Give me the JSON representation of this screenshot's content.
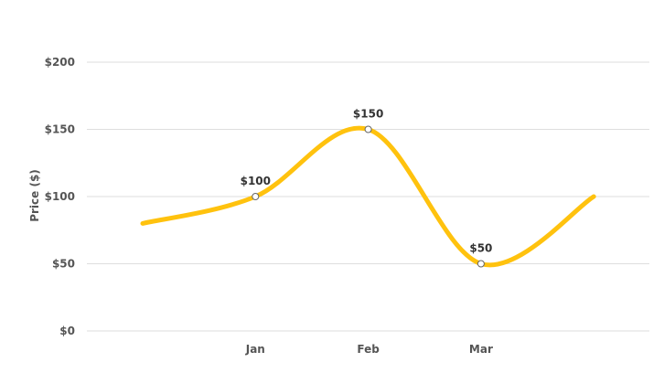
{
  "chart_data": {
    "type": "line",
    "title": "",
    "xlabel": "",
    "ylabel": "Price ($)",
    "categories": [
      "",
      "Jan",
      "Feb",
      "Mar",
      ""
    ],
    "series": [
      {
        "values": [
          80,
          100,
          150,
          50,
          100
        ],
        "color": "#FFC20E",
        "smooth": true
      }
    ],
    "data_labels": [
      {
        "index": 1,
        "text": "$100"
      },
      {
        "index": 2,
        "text": "$150"
      },
      {
        "index": 3,
        "text": "$50"
      }
    ],
    "yticks": [
      0,
      50,
      100,
      150,
      200
    ],
    "ytick_labels": [
      "$0",
      "$50",
      "$100",
      "$150",
      "$200"
    ],
    "xtick_labels": [
      "Jan",
      "Feb",
      "Mar"
    ],
    "ylim": [
      0,
      200
    ],
    "grid": true,
    "legend": "none"
  }
}
